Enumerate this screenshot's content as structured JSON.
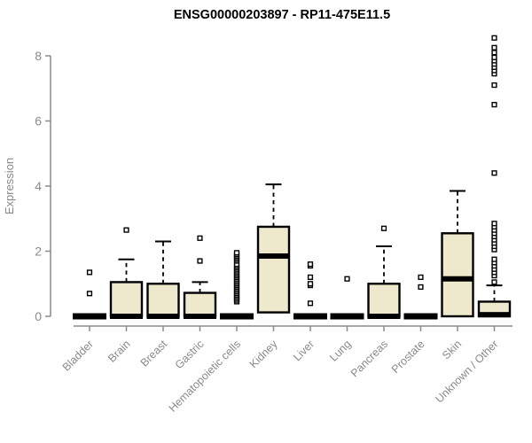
{
  "title": "ENSG00000203897 - RP11-475E11.5",
  "chart_data": {
    "type": "boxplot",
    "title": "ENSG00000203897 - RP11-475E11.5",
    "xlabel": "",
    "ylabel": "Expression",
    "ylim": [
      0,
      8.6
    ],
    "yticks": [
      0,
      2,
      4,
      6,
      8
    ],
    "grid": false,
    "legend": "none",
    "colors": {
      "box_fill": "#EEE8CD",
      "box_stroke": "#000000",
      "median": "#000000",
      "axis": "#8A8A8A",
      "title": "#000000",
      "background": "#FFFFFF"
    },
    "categories": [
      "Bladder",
      "Brain",
      "Breast",
      "Gastric",
      "Hematopoietic cells",
      "Kidney",
      "Liver",
      "Lung",
      "Pancreas",
      "Prostate",
      "Skin",
      "Unknown / Other"
    ],
    "boxes": [
      {
        "label": "Bladder",
        "collapsed": true,
        "q1": 0,
        "median": 0,
        "q3": 0,
        "whisker_high": null,
        "outliers": [
          0.7,
          1.35
        ]
      },
      {
        "label": "Brain",
        "collapsed": false,
        "q1": 0,
        "median": 0,
        "q3": 1.05,
        "whisker_high": 1.75,
        "outliers": [
          2.65
        ]
      },
      {
        "label": "Breast",
        "collapsed": false,
        "q1": 0,
        "median": 0,
        "q3": 1.0,
        "whisker_high": 2.3,
        "outliers": []
      },
      {
        "label": "Gastric",
        "collapsed": false,
        "q1": 0,
        "median": 0,
        "q3": 0.72,
        "whisker_high": 1.05,
        "outliers": [
          1.7,
          2.4
        ]
      },
      {
        "label": "Hematopoietic cells",
        "collapsed": true,
        "q1": 0,
        "median": 0,
        "q3": 0,
        "whisker_high": null,
        "outliers": [
          0.45,
          0.5,
          0.55,
          0.6,
          0.65,
          0.7,
          0.75,
          0.8,
          0.85,
          0.9,
          0.95,
          1.0,
          1.05,
          1.1,
          1.15,
          1.2,
          1.25,
          1.3,
          1.35,
          1.4,
          1.45,
          1.5,
          1.55,
          1.6,
          1.7,
          1.75,
          1.8,
          1.85,
          1.9,
          1.95
        ]
      },
      {
        "label": "Kidney",
        "collapsed": false,
        "q1": 0.12,
        "median": 1.85,
        "q3": 2.75,
        "whisker_high": 4.05,
        "outliers": []
      },
      {
        "label": "Liver",
        "collapsed": true,
        "q1": 0,
        "median": 0,
        "q3": 0,
        "whisker_high": null,
        "outliers": [
          0.4,
          0.95,
          1.0,
          1.2,
          1.55,
          1.6
        ]
      },
      {
        "label": "Lung",
        "collapsed": true,
        "q1": 0,
        "median": 0,
        "q3": 0,
        "whisker_high": null,
        "outliers": [
          1.15
        ]
      },
      {
        "label": "Pancreas",
        "collapsed": false,
        "q1": 0,
        "median": 0,
        "q3": 1.0,
        "whisker_high": 2.15,
        "outliers": [
          2.7
        ]
      },
      {
        "label": "Prostate",
        "collapsed": true,
        "q1": 0,
        "median": 0,
        "q3": 0,
        "whisker_high": null,
        "outliers": [
          0.9,
          1.2
        ]
      },
      {
        "label": "Skin",
        "collapsed": false,
        "q1": 0,
        "median": 1.15,
        "q3": 2.55,
        "whisker_high": 3.85,
        "outliers": []
      },
      {
        "label": "Unknown / Other",
        "collapsed": false,
        "q1": 0,
        "median": 0.05,
        "q3": 0.45,
        "whisker_high": 0.95,
        "outliers": [
          1.05,
          1.25,
          1.35,
          1.45,
          1.55,
          1.65,
          1.75,
          2.05,
          2.15,
          2.25,
          2.35,
          2.45,
          2.55,
          2.65,
          2.75,
          2.85,
          4.4,
          6.5,
          7.1,
          7.45,
          7.55,
          7.65,
          7.75,
          7.85,
          7.95,
          8.1,
          8.25,
          8.55
        ]
      }
    ]
  }
}
